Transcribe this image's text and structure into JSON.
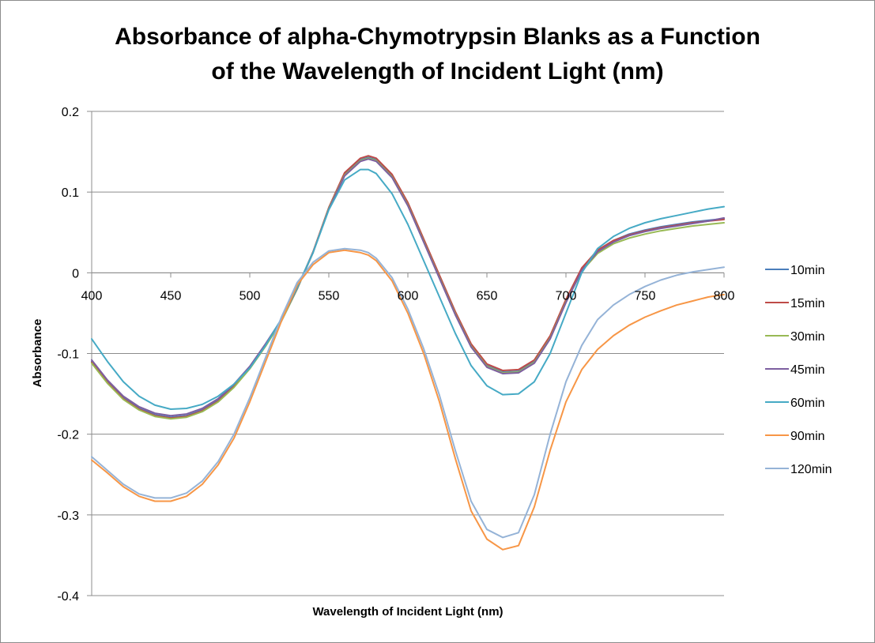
{
  "chart_data": {
    "type": "line",
    "title_lines": [
      "Absorbance of alpha-Chymotrypsin Blanks as a Function",
      "of the Wavelength of Incident Light (nm)"
    ],
    "xlabel": "Wavelength of Incident Light (nm)",
    "ylabel": "Absorbance",
    "xlim": [
      400,
      800
    ],
    "ylim": [
      -0.4,
      0.2
    ],
    "x_ticks": [
      400,
      450,
      500,
      550,
      600,
      650,
      700,
      750,
      800
    ],
    "x_tick_labels": [
      "400",
      "450",
      "500",
      "550",
      "600",
      "650",
      "700",
      "750",
      "800"
    ],
    "y_ticks": [
      0.2,
      0.1,
      0,
      -0.1,
      -0.2,
      -0.3,
      -0.4
    ],
    "y_tick_labels": [
      "0.2",
      "0.1",
      "0",
      "-0.1",
      "-0.2",
      "-0.3",
      "-0.4"
    ],
    "grid": "horizontal major",
    "legend_position": "right",
    "x": [
      400,
      410,
      420,
      430,
      440,
      450,
      460,
      470,
      480,
      490,
      500,
      510,
      520,
      530,
      540,
      550,
      560,
      570,
      575,
      580,
      590,
      600,
      610,
      620,
      630,
      640,
      650,
      660,
      670,
      680,
      690,
      700,
      710,
      720,
      730,
      740,
      750,
      760,
      770,
      780,
      790,
      800
    ],
    "series": [
      {
        "name": "10min",
        "color": "#4a7ebb",
        "values": [
          -0.11,
          -0.135,
          -0.155,
          -0.168,
          -0.176,
          -0.179,
          -0.177,
          -0.17,
          -0.158,
          -0.14,
          -0.118,
          -0.09,
          -0.06,
          -0.02,
          0.025,
          0.08,
          0.122,
          0.14,
          0.143,
          0.14,
          0.12,
          0.085,
          0.04,
          -0.005,
          -0.05,
          -0.09,
          -0.115,
          -0.123,
          -0.122,
          -0.11,
          -0.08,
          -0.035,
          0.005,
          0.028,
          0.04,
          0.048,
          0.053,
          0.057,
          0.06,
          0.063,
          0.065,
          0.067
        ]
      },
      {
        "name": "15min",
        "color": "#be4b48",
        "values": [
          -0.111,
          -0.136,
          -0.156,
          -0.169,
          -0.177,
          -0.18,
          -0.178,
          -0.171,
          -0.159,
          -0.141,
          -0.118,
          -0.09,
          -0.059,
          -0.019,
          0.026,
          0.081,
          0.124,
          0.142,
          0.145,
          0.142,
          0.122,
          0.087,
          0.042,
          -0.003,
          -0.048,
          -0.088,
          -0.113,
          -0.121,
          -0.12,
          -0.108,
          -0.078,
          -0.033,
          0.006,
          0.028,
          0.04,
          0.047,
          0.052,
          0.056,
          0.059,
          0.062,
          0.064,
          0.066
        ]
      },
      {
        "name": "30min",
        "color": "#98b954",
        "values": [
          -0.112,
          -0.137,
          -0.157,
          -0.17,
          -0.178,
          -0.181,
          -0.179,
          -0.172,
          -0.16,
          -0.142,
          -0.119,
          -0.091,
          -0.06,
          -0.02,
          0.025,
          0.08,
          0.121,
          0.139,
          0.142,
          0.139,
          0.119,
          0.084,
          0.039,
          -0.006,
          -0.051,
          -0.091,
          -0.116,
          -0.124,
          -0.123,
          -0.111,
          -0.081,
          -0.036,
          0.002,
          0.024,
          0.036,
          0.043,
          0.048,
          0.052,
          0.055,
          0.058,
          0.06,
          0.062
        ]
      },
      {
        "name": "45min",
        "color": "#7d5fa0",
        "values": [
          -0.108,
          -0.133,
          -0.153,
          -0.166,
          -0.174,
          -0.177,
          -0.175,
          -0.168,
          -0.156,
          -0.138,
          -0.116,
          -0.088,
          -0.058,
          -0.019,
          0.025,
          0.079,
          0.12,
          0.138,
          0.141,
          0.138,
          0.118,
          0.083,
          0.038,
          -0.007,
          -0.052,
          -0.092,
          -0.117,
          -0.125,
          -0.124,
          -0.112,
          -0.082,
          -0.037,
          0.003,
          0.026,
          0.038,
          0.046,
          0.051,
          0.055,
          0.058,
          0.061,
          0.064,
          0.068
        ]
      },
      {
        "name": "60min",
        "color": "#46aac5",
        "values": [
          -0.082,
          -0.11,
          -0.135,
          -0.153,
          -0.164,
          -0.169,
          -0.168,
          -0.163,
          -0.153,
          -0.138,
          -0.118,
          -0.09,
          -0.057,
          -0.018,
          0.025,
          0.078,
          0.115,
          0.128,
          0.128,
          0.123,
          0.098,
          0.06,
          0.015,
          -0.03,
          -0.075,
          -0.115,
          -0.14,
          -0.151,
          -0.15,
          -0.135,
          -0.1,
          -0.05,
          0.0,
          0.03,
          0.045,
          0.055,
          0.062,
          0.067,
          0.071,
          0.075,
          0.079,
          0.082
        ]
      },
      {
        "name": "90min",
        "color": "#f79646",
        "values": [
          -0.232,
          -0.248,
          -0.265,
          -0.277,
          -0.283,
          -0.283,
          -0.277,
          -0.262,
          -0.238,
          -0.205,
          -0.16,
          -0.11,
          -0.06,
          -0.015,
          0.01,
          0.025,
          0.028,
          0.025,
          0.022,
          0.015,
          -0.01,
          -0.05,
          -0.1,
          -0.16,
          -0.23,
          -0.295,
          -0.33,
          -0.343,
          -0.338,
          -0.29,
          -0.22,
          -0.16,
          -0.12,
          -0.095,
          -0.078,
          -0.065,
          -0.055,
          -0.047,
          -0.04,
          -0.035,
          -0.03,
          -0.027
        ]
      },
      {
        "name": "120min",
        "color": "#95b3d7",
        "values": [
          -0.228,
          -0.245,
          -0.262,
          -0.274,
          -0.279,
          -0.279,
          -0.273,
          -0.258,
          -0.234,
          -0.2,
          -0.155,
          -0.105,
          -0.055,
          -0.012,
          0.013,
          0.027,
          0.03,
          0.028,
          0.025,
          0.018,
          -0.006,
          -0.045,
          -0.094,
          -0.152,
          -0.22,
          -0.283,
          -0.318,
          -0.328,
          -0.322,
          -0.275,
          -0.2,
          -0.135,
          -0.09,
          -0.058,
          -0.04,
          -0.027,
          -0.017,
          -0.009,
          -0.003,
          0.001,
          0.004,
          0.007
        ]
      }
    ]
  }
}
